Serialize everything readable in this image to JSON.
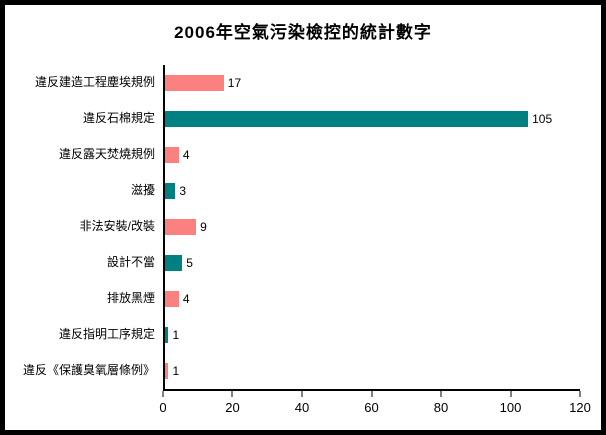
{
  "title": "2006年空氣污染檢控的統計數字",
  "chart_data": {
    "type": "bar",
    "orientation": "horizontal",
    "title": "2006年空氣污染檢控的統計數字",
    "categories": [
      "違反建造工程塵埃規例",
      "違反石棉規定",
      "違反露天焚燒規例",
      "滋擾",
      "非法安裝/改裝",
      "設計不當",
      "排放黑煙",
      "違反指明工序規定",
      "違反《保護臭氧層條例》"
    ],
    "values": [
      17,
      105,
      4,
      3,
      9,
      5,
      4,
      1,
      1
    ],
    "data_labels": [
      "17",
      "105",
      "4",
      "3",
      "9",
      "5",
      "4",
      "1",
      "1"
    ],
    "xlabel": "",
    "ylabel": "",
    "xlim": [
      0,
      120
    ],
    "x_ticks": [
      "0",
      "20",
      "40",
      "60",
      "80",
      "100",
      "120"
    ],
    "grid": false,
    "legend": "none",
    "bar_palette_alternating": [
      "#fb8080",
      "#008080"
    ]
  },
  "colors": {
    "bar_salmon": "#fb8080",
    "bar_teal": "#008080",
    "axis": "#000000",
    "background": "#ffffff",
    "frame_border": "#000000",
    "text": "#000000"
  }
}
